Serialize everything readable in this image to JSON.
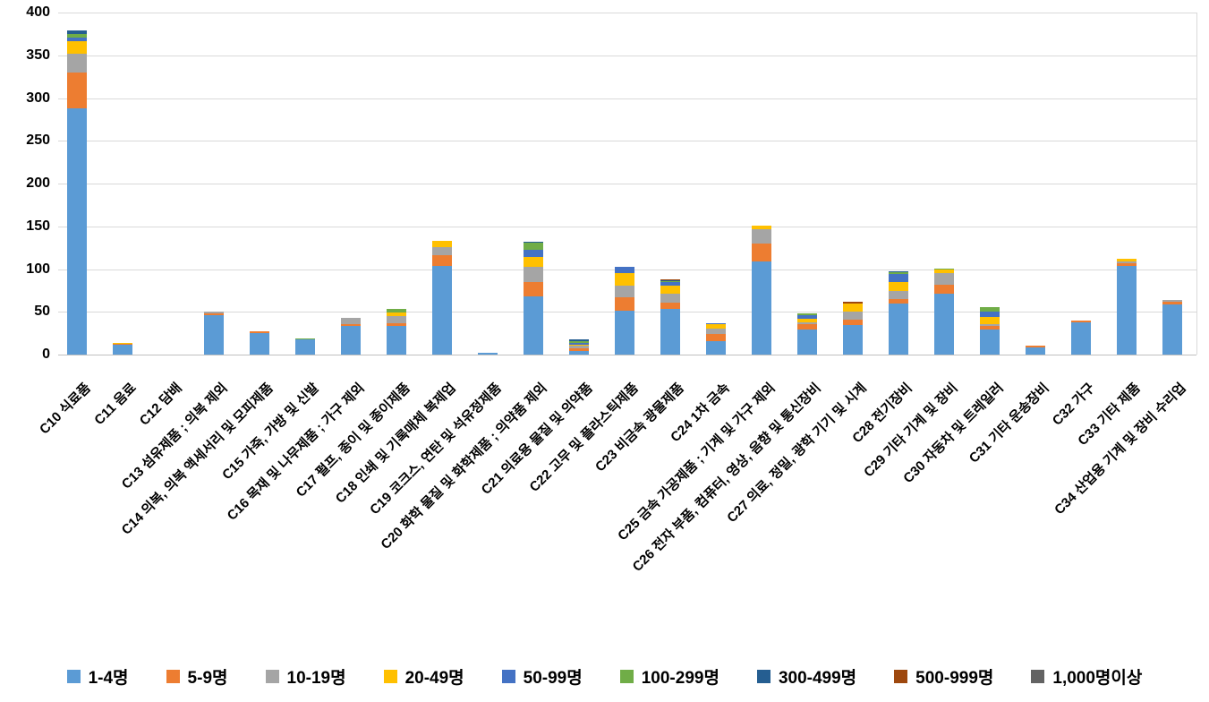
{
  "chart_data": {
    "type": "bar",
    "stacked": true,
    "title": "",
    "xlabel": "",
    "ylabel": "",
    "grid": true,
    "legend_position": "bottom",
    "y_axis": {
      "min": 0,
      "max": 400,
      "step": 50,
      "tick_labels": [
        "0",
        "50",
        "100",
        "150",
        "200",
        "250",
        "300",
        "350",
        "400"
      ]
    },
    "categories": [
      "C10 식료품",
      "C11 음료",
      "C12 담배",
      "C13 섬유제품 ; 의복 제외",
      "C14 의복, 의복 액세서리 및 모피제품",
      "C15 가죽, 가방 및 신발",
      "C16 목재 및 나무제품 ; 가구 제외",
      "C17 펄프, 종이 및 종이제품",
      "C18 인쇄 및 기록매체 복제업",
      "C19 코크스, 연탄 및 석유정제품",
      "C20 화학 물질 및 화학제품 ; 의약품 제외",
      "C21 의료용 물질 및 의약품",
      "C22 고무 및 플라스틱제품",
      "C23 비금속 광물제품",
      "C24 1차 금속",
      "C25 금속 가공제품 ; 기계 및 가구 제외",
      "C26 전자 부품, 컴퓨터, 영상, 음향 및 통신장비",
      "C27 의료, 정밀, 광학 기기 및 시계",
      "C28 전기장비",
      "C29 기타 기계 및 장비",
      "C30 자동차 및 트레일러",
      "C31 기타 운송장비",
      "C32 가구",
      "C33 기타 제품",
      "C34 산업용 기계 및 장비 수리업"
    ],
    "series": [
      {
        "name": "1-4명",
        "color": "#5B9BD5",
        "values": [
          288,
          11,
          0,
          46,
          25,
          18,
          33,
          34,
          104,
          2,
          68,
          4,
          51,
          53,
          16,
          109,
          29,
          35,
          60,
          71,
          29,
          8,
          38,
          104,
          59
        ]
      },
      {
        "name": "5-9명",
        "color": "#ED7D31",
        "values": [
          42,
          2,
          0,
          2,
          2,
          0,
          3,
          3,
          12,
          0,
          17,
          3,
          16,
          8,
          8,
          21,
          7,
          6,
          5,
          11,
          4,
          2,
          2,
          3,
          3
        ]
      },
      {
        "name": "10-19명",
        "color": "#A5A5A5",
        "values": [
          22,
          0,
          0,
          2,
          0,
          0,
          7,
          8,
          10,
          0,
          18,
          3,
          14,
          10,
          6,
          17,
          2,
          9,
          9,
          13,
          3,
          0,
          0,
          2,
          2
        ]
      },
      {
        "name": "20-49명",
        "color": "#FFC000",
        "values": [
          15,
          1,
          0,
          0,
          0,
          0,
          0,
          4,
          7,
          0,
          11,
          2,
          14,
          10,
          6,
          4,
          4,
          10,
          11,
          4,
          8,
          0,
          0,
          3,
          0
        ]
      },
      {
        "name": "50-99명",
        "color": "#4472C4",
        "values": [
          4,
          0,
          0,
          0,
          0,
          0,
          0,
          0,
          0,
          0,
          9,
          2,
          8,
          4,
          1,
          0,
          4,
          0,
          9,
          0,
          6,
          0,
          0,
          0,
          0
        ]
      },
      {
        "name": "100-299명",
        "color": "#70AD47",
        "values": [
          4,
          0,
          0,
          0,
          0,
          1,
          0,
          4,
          0,
          0,
          8,
          2,
          0,
          1,
          0,
          0,
          2,
          0,
          2,
          2,
          6,
          0,
          0,
          0,
          0
        ]
      },
      {
        "name": "300-499명",
        "color": "#255E91",
        "values": [
          4,
          0,
          0,
          0,
          0,
          0,
          0,
          0,
          0,
          0,
          1,
          2,
          0,
          1,
          0,
          0,
          0,
          0,
          1,
          0,
          0,
          0,
          0,
          0,
          0
        ]
      },
      {
        "name": "500-999명",
        "color": "#9E480E",
        "values": [
          0,
          0,
          0,
          0,
          0,
          0,
          0,
          0,
          0,
          0,
          0,
          0,
          0,
          1,
          0,
          0,
          0,
          2,
          0,
          0,
          0,
          0,
          0,
          0,
          0
        ]
      },
      {
        "name": "1,000명이상",
        "color": "#636363",
        "values": [
          0,
          0,
          0,
          0,
          0,
          0,
          0,
          0,
          0,
          0,
          0,
          0,
          0,
          0,
          0,
          0,
          0,
          0,
          0,
          0,
          0,
          0,
          0,
          0,
          0
        ]
      }
    ]
  }
}
